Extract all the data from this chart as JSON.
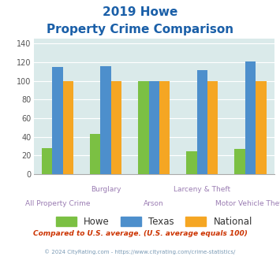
{
  "title_line1": "2019 Howe",
  "title_line2": "Property Crime Comparison",
  "categories": [
    "All Property Crime",
    "Burglary",
    "Arson",
    "Larceny & Theft",
    "Motor Vehicle Theft"
  ],
  "howe": [
    28,
    43,
    100,
    25,
    27
  ],
  "texas": [
    115,
    116,
    100,
    112,
    121
  ],
  "national": [
    100,
    100,
    100,
    100,
    100
  ],
  "howe_color": "#7bc043",
  "texas_color": "#4d8fcc",
  "national_color": "#f5a623",
  "bg_color": "#daeaea",
  "ylim": [
    0,
    145
  ],
  "yticks": [
    0,
    20,
    40,
    60,
    80,
    100,
    120,
    140
  ],
  "title_color": "#1a5fa8",
  "subtitle_text": "Compared to U.S. average. (U.S. average equals 100)",
  "footer_text": "© 2024 CityRating.com - https://www.cityrating.com/crime-statistics/",
  "subtitle_color": "#cc3300",
  "footer_color": "#7a9ab5",
  "xlabel_color": "#9b7db3",
  "legend_labels": [
    "Howe",
    "Texas",
    "National"
  ],
  "bar_width": 0.22,
  "group_positions": [
    0,
    1,
    2,
    3,
    4
  ]
}
